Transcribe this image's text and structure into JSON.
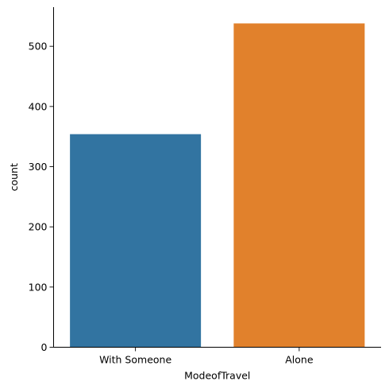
{
  "chart_data": {
    "type": "bar",
    "title": "",
    "xlabel": "ModeofTravel",
    "ylabel": "count",
    "categories": [
      "With Someone",
      "Alone"
    ],
    "values": [
      354,
      538
    ],
    "ylim": [
      0,
      565
    ],
    "yticks": [
      0,
      100,
      200,
      300,
      400,
      500
    ],
    "ytick_labels": [
      "0",
      "100",
      "200",
      "300",
      "400",
      "500"
    ],
    "colors": [
      "#3274a1",
      "#e1812c"
    ],
    "grid": false,
    "legend": "none"
  }
}
